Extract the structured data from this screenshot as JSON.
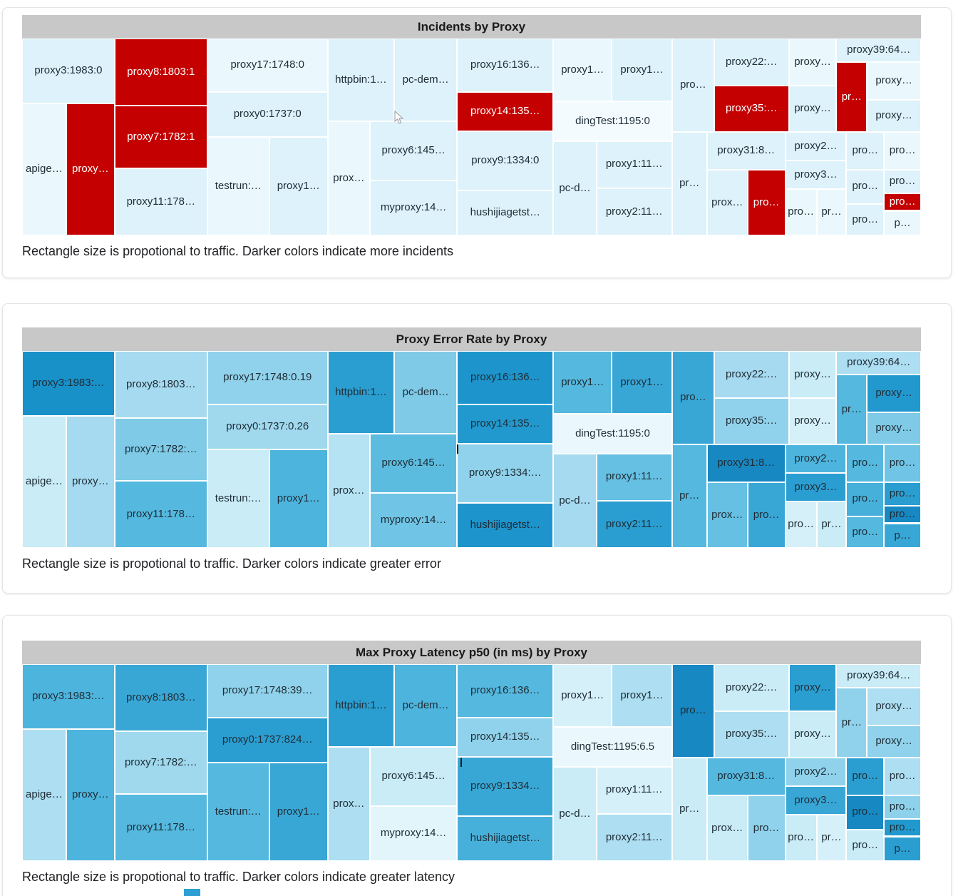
{
  "colors": {
    "header_bg": "#c8c8c8",
    "card_border": "#e4e4e4",
    "incident_red": "#c40000",
    "label_dark": "#1f2d36",
    "label_light": "#ffffff"
  },
  "treemap_geometry": [
    [
      0,
      0,
      10.3,
      33
    ],
    [
      0,
      33,
      4.9,
      67
    ],
    [
      4.9,
      33,
      5.4,
      67
    ],
    [
      10.3,
      0,
      10.3,
      34
    ],
    [
      10.3,
      34,
      10.3,
      32
    ],
    [
      10.3,
      66,
      10.3,
      34
    ],
    [
      20.6,
      0,
      13.4,
      27
    ],
    [
      20.6,
      27,
      13.4,
      23
    ],
    [
      20.6,
      50,
      6.9,
      50
    ],
    [
      27.5,
      50,
      6.5,
      50
    ],
    [
      34,
      0,
      7.4,
      42
    ],
    [
      41.4,
      0,
      7,
      42
    ],
    [
      34,
      42,
      4.7,
      58
    ],
    [
      38.7,
      42,
      9.7,
      30
    ],
    [
      38.7,
      72,
      9.7,
      28
    ],
    [
      48.4,
      0,
      10.7,
      27
    ],
    [
      48.4,
      27,
      10.7,
      20
    ],
    [
      48.4,
      47,
      10.7,
      30
    ],
    [
      48.4,
      77,
      10.7,
      23
    ],
    [
      59.1,
      0,
      6.5,
      32
    ],
    [
      65.6,
      0,
      6.7,
      32
    ],
    [
      59.1,
      32,
      13.2,
      20
    ],
    [
      59.1,
      52,
      4.8,
      48
    ],
    [
      63.9,
      52,
      8.4,
      24
    ],
    [
      63.9,
      76,
      8.4,
      24
    ],
    [
      72.3,
      0,
      4.7,
      47.5
    ],
    [
      77,
      0,
      8.3,
      24
    ],
    [
      77,
      24,
      8.3,
      23.5
    ],
    [
      85.3,
      0,
      5.3,
      24
    ],
    [
      85.3,
      24,
      5.3,
      23.5
    ],
    [
      90.6,
      0,
      9.4,
      12
    ],
    [
      90.6,
      12,
      3.4,
      35.5
    ],
    [
      94,
      12,
      6,
      19
    ],
    [
      94,
      31,
      6,
      16.5
    ],
    [
      72.3,
      47.5,
      3.9,
      52.5
    ],
    [
      76.2,
      47.5,
      8.7,
      19
    ],
    [
      76.2,
      66.5,
      4.5,
      33.5
    ],
    [
      80.7,
      66.5,
      4.2,
      33.5
    ],
    [
      84.9,
      47.5,
      6.8,
      14.5
    ],
    [
      84.9,
      62,
      6.8,
      14.5
    ],
    [
      84.9,
      76.5,
      3.5,
      23.5
    ],
    [
      88.4,
      76.5,
      3.3,
      23.5
    ],
    [
      91.7,
      47.5,
      4.2,
      19
    ],
    [
      95.9,
      47.5,
      4.1,
      19
    ],
    [
      91.7,
      66.5,
      4.2,
      17.5
    ],
    [
      95.9,
      66.5,
      4.1,
      12
    ],
    [
      95.9,
      78.5,
      4.1,
      9
    ],
    [
      91.7,
      84,
      4.2,
      16
    ],
    [
      95.9,
      87.5,
      4.1,
      12.5
    ]
  ],
  "chart_data": [
    {
      "type": "treemap",
      "title": "Incidents by Proxy",
      "caption": "Rectangle size is propotional to traffic. Darker colors indicate more incidents",
      "size_note": "rectangle size proportional to traffic",
      "color_note": "darker colors indicate more incidents",
      "labels": [
        "proxy3:1983:0",
        "apige…",
        "proxy…",
        "proxy8:1803:1",
        "proxy7:1782:1",
        "proxy11:178…",
        "proxy17:1748:0",
        "proxy0:1737:0",
        "testrun:…",
        "proxy1…",
        "httpbin:1…",
        "pc-dem…",
        "prox…",
        "proxy6:145…",
        "myproxy:14…",
        "proxy16:136…",
        "proxy14:135…",
        "proxy9:1334:0",
        "hushijiagetst…",
        "proxy1…",
        "proxy1…",
        "dingTest:1195:0",
        "pc-d…",
        "proxy1:11…",
        "proxy2:11…",
        "pro…",
        "proxy22:…",
        "proxy35:…",
        "proxy…",
        "proxy…",
        "proxy39:64…",
        "pr…",
        "proxy…",
        "proxy…",
        "pr…",
        "proxy31:8…",
        "prox…",
        "pro…",
        "proxy2…",
        "proxy3…",
        "pro…",
        "pr…",
        "pro…",
        "pro…",
        "pro…",
        "pro…",
        "pro…",
        "pro…",
        "p…"
      ],
      "colors": [
        "#ddf2fa",
        "#eaf8fd",
        "#c40000",
        "#c40000",
        "#c40000",
        "#ddf2fa",
        "#eaf8fd",
        "#ddf2fa",
        "#eaf8fd",
        "#ddf2fa",
        "#ddf2fa",
        "#ddf2fa",
        "#eaf8fd",
        "#ddf2fa",
        "#ddf2fa",
        "#ddf2fa",
        "#c40000",
        "#ddf2fa",
        "#ddf2fa",
        "#eaf8fd",
        "#ddf2fa",
        "#f3fbfe",
        "#ddf2fa",
        "#ddf2fa",
        "#ddf2fa",
        "#ddf2fa",
        "#ddf2fa",
        "#c40000",
        "#eaf8fd",
        "#ddf2fa",
        "#ddf2fa",
        "#c40000",
        "#eaf8fd",
        "#ddf2fa",
        "#ddf2fa",
        "#ddf2fa",
        "#ddf2fa",
        "#c40000",
        "#ddf2fa",
        "#ddf2fa",
        "#eaf8fd",
        "#eaf8fd",
        "#ddf2fa",
        "#eaf8fd",
        "#ddf2fa",
        "#ddf2fa",
        "#c40000",
        "#ddf2fa",
        "#eaf8fd"
      ]
    },
    {
      "type": "treemap",
      "title": "Proxy Error Rate by Proxy",
      "caption": "Rectangle size is propotional to traffic. Darker colors indicate greater error",
      "size_note": "rectangle size proportional to traffic",
      "color_note": "darker colors indicate greater error",
      "labels": [
        "proxy3:1983:…",
        "apige…",
        "proxy…",
        "proxy8:1803…",
        "proxy7:1782:…",
        "proxy11:178…",
        "proxy17:1748:0.19",
        "proxy0:1737:0.26",
        "testrun:…",
        "proxy1…",
        "httpbin:1…",
        "pc-dem…",
        "prox…",
        "proxy6:145…",
        "myproxy:14…",
        "proxy16:136…",
        "proxy14:135…",
        "proxy9:1334:…",
        "hushijiagetst…",
        "proxy1…",
        "proxy1…",
        "dingTest:1195:0",
        "pc-d…",
        "proxy1:11…",
        "proxy2:11…",
        "pro…",
        "proxy22:…",
        "proxy35:…",
        "proxy…",
        "proxy…",
        "proxy39:64…",
        "pr…",
        "proxy…",
        "proxy…",
        "pr…",
        "proxy31:8…",
        "prox…",
        "pro…",
        "proxy2…",
        "proxy3…",
        "pro…",
        "pr…",
        "pro…",
        "pro…",
        "pro…",
        "pro…",
        "pro…",
        "pro…",
        "p…"
      ],
      "colors": [
        "#1890c8",
        "#c9ecf7",
        "#a6daf0",
        "#a6daf0",
        "#7ecae7",
        "#55b8df",
        "#90d2eb",
        "#a0d8ee",
        "#c9ecf7",
        "#4db4dd",
        "#2b9ed1",
        "#7ecae7",
        "#b6e3f3",
        "#5cbce0",
        "#70c4e5",
        "#1d94cb",
        "#2299ce",
        "#90d2eb",
        "#1d94cb",
        "#55b8df",
        "#38a7d6",
        "#eaf8fd",
        "#a6daf0",
        "#65c0e3",
        "#2b9ed1",
        "#38a7d6",
        "#a6daf0",
        "#90d2eb",
        "#c9ecf7",
        "#d6f0f9",
        "#aedef1",
        "#55b8df",
        "#2299ce",
        "#7ecae7",
        "#55b8df",
        "#1788c2",
        "#65c0e3",
        "#38a7d6",
        "#4db4dd",
        "#2b9ed1",
        "#d6f0f9",
        "#c9ecf7",
        "#55b8df",
        "#70c4e5",
        "#47b0da",
        "#2b9ed1",
        "#1788c2",
        "#55b8df",
        "#38a7d6"
      ]
    },
    {
      "type": "treemap",
      "title": "Max Proxy Latency p50 (in ms) by Proxy",
      "caption": "Rectangle size is propotional to traffic. Darker colors indicate greater latency",
      "size_note": "rectangle size proportional to traffic",
      "color_note": "darker colors indicate greater latency",
      "labels": [
        "proxy3:1983:…",
        "apige…",
        "proxy…",
        "proxy8:1803…",
        "proxy7:1782:…",
        "proxy11:178…",
        "proxy17:1748:39…",
        "proxy0:1737:824…",
        "testrun:…",
        "proxy1…",
        "httpbin:1…",
        "pc-dem…",
        "prox…",
        "proxy6:145…",
        "myproxy:14…",
        "proxy16:136…",
        "proxy14:135…",
        "proxy9:1334…",
        "hushijiagetst…",
        "proxy1…",
        "proxy1…",
        "dingTest:1195:6.5",
        "pc-d…",
        "proxy1:11…",
        "proxy2:11…",
        "pro…",
        "proxy22:…",
        "proxy35:…",
        "proxy…",
        "proxy…",
        "proxy39:64…",
        "pr…",
        "proxy…",
        "proxy…",
        "pr…",
        "proxy31:8…",
        "prox…",
        "pro…",
        "proxy2…",
        "proxy3…",
        "pro…",
        "pr…",
        "pro…",
        "pro…",
        "pro…",
        "pro…",
        "pro…",
        "pro…",
        "p…"
      ],
      "colors": [
        "#4db4dd",
        "#aedef1",
        "#4db4dd",
        "#38a7d6",
        "#a0d8ee",
        "#55b8df",
        "#90d2eb",
        "#2b9ed1",
        "#55b8df",
        "#38a7d6",
        "#2b9ed1",
        "#4db4dd",
        "#aedef1",
        "#c9ecf7",
        "#e2f5fb",
        "#55b8df",
        "#90d2eb",
        "#38a7d6",
        "#47b0da",
        "#d6f0f9",
        "#aedef1",
        "#eaf8fd",
        "#c9ecf7",
        "#d6f0f9",
        "#aedef1",
        "#1788c2",
        "#c9ecf7",
        "#aedef1",
        "#2b9ed1",
        "#c9ecf7",
        "#c9ecf7",
        "#90d2eb",
        "#aedef1",
        "#90d2eb",
        "#c9ecf7",
        "#55b8df",
        "#c9ecf7",
        "#90d2eb",
        "#90d2eb",
        "#38a7d6",
        "#c9ecf7",
        "#d6f0f9",
        "#2b9ed1",
        "#aedef1",
        "#1788c2",
        "#8ed1ea",
        "#2299ce",
        "#c9ecf7",
        "#2b9ed1"
      ]
    }
  ]
}
